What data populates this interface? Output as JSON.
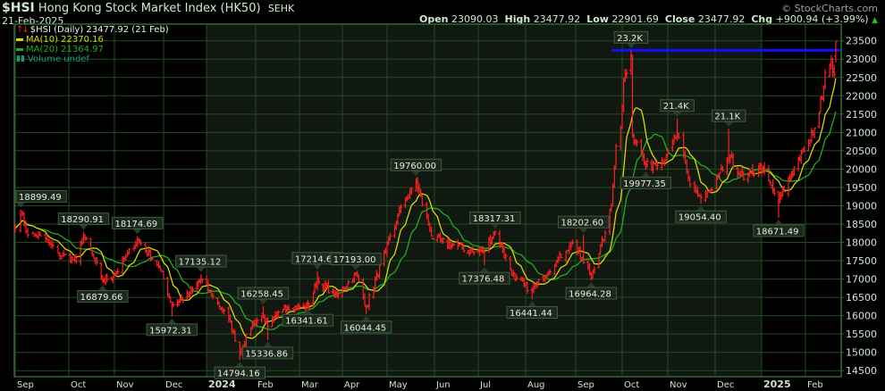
{
  "header": {
    "symbol": "$HSI",
    "name": "Hong Kong Stock Market Index (HK50)",
    "exchange": "SEHK",
    "date": "21-Feb-2025",
    "watermark": "© StockCharts.com",
    "open_label": "Open",
    "open": "23090.03",
    "high_label": "High",
    "high": "23477.92",
    "low_label": "Low",
    "low": "22901.69",
    "close_label": "Close",
    "close": "23477.92",
    "chg_label": "Chg",
    "chg": "+900.94 (+3.99%)",
    "chg_icon": "triangle-up-icon"
  },
  "legend": {
    "price": "$HSI (Daily) 23477.92 (21 Feb)",
    "ma10": "MA(10) 22370.16",
    "ma20": "MA(20) 21364.97",
    "volume": "Volume undef"
  },
  "colors": {
    "bars": "#ff2020",
    "ma10": "#d8d800",
    "ma20": "#1fae1f",
    "volume": "#1a9a7a",
    "resistance": "#1010ff",
    "grid": "#1f4d1f",
    "shade": "#111811"
  },
  "chart_data": {
    "type": "ohlc",
    "ylim": [
      14300,
      23700
    ],
    "yticks": [
      14500,
      15000,
      15500,
      16000,
      16500,
      17000,
      17500,
      18000,
      18500,
      19000,
      19500,
      20000,
      20500,
      21000,
      21500,
      22000,
      22500,
      23000,
      23500
    ],
    "xticks": [
      {
        "date": "2023-09-01",
        "label": "Sep"
      },
      {
        "date": "2023-10-01",
        "label": "Oct"
      },
      {
        "date": "2023-11-01",
        "label": "Nov"
      },
      {
        "date": "2023-12-01",
        "label": "Dec"
      },
      {
        "date": "2024-01-01",
        "label": "2024",
        "bold": true
      },
      {
        "date": "2024-02-01",
        "label": "Feb"
      },
      {
        "date": "2024-03-01",
        "label": "Mar"
      },
      {
        "date": "2024-04-01",
        "label": "Apr"
      },
      {
        "date": "2024-05-01",
        "label": "May"
      },
      {
        "date": "2024-06-01",
        "label": "Jun"
      },
      {
        "date": "2024-07-01",
        "label": "Jul"
      },
      {
        "date": "2024-08-01",
        "label": "Aug"
      },
      {
        "date": "2024-09-01",
        "label": "Sep"
      },
      {
        "date": "2024-10-01",
        "label": "Oct"
      },
      {
        "date": "2024-11-01",
        "label": "Nov"
      },
      {
        "date": "2024-12-01",
        "label": "Dec"
      },
      {
        "date": "2025-01-01",
        "label": "2025",
        "bold": true
      },
      {
        "date": "2025-02-01",
        "label": "Feb"
      }
    ],
    "closes": [
      [
        "2023-08-31",
        18380
      ],
      [
        "2023-09-04",
        18840
      ],
      [
        "2023-09-08",
        18200
      ],
      [
        "2023-09-15",
        18180
      ],
      [
        "2023-09-25",
        17700
      ],
      [
        "2023-10-06",
        17490
      ],
      [
        "2023-10-11",
        18200
      ],
      [
        "2023-10-24",
        16990
      ],
      [
        "2023-11-01",
        17100
      ],
      [
        "2023-11-08",
        17600
      ],
      [
        "2023-11-15",
        18080
      ],
      [
        "2023-11-28",
        17350
      ],
      [
        "2023-12-07",
        16300
      ],
      [
        "2023-12-20",
        16600
      ],
      [
        "2023-12-28",
        17000
      ],
      [
        "2024-01-05",
        16530
      ],
      [
        "2024-01-15",
        15900
      ],
      [
        "2024-01-22",
        15000
      ],
      [
        "2024-01-30",
        15800
      ],
      [
        "2024-02-06",
        16000
      ],
      [
        "2024-02-09",
        15700
      ],
      [
        "2024-02-20",
        16250
      ],
      [
        "2024-03-07",
        16230
      ],
      [
        "2024-03-14",
        16950
      ],
      [
        "2024-03-28",
        16540
      ],
      [
        "2024-04-10",
        17140
      ],
      [
        "2024-04-17",
        16250
      ],
      [
        "2024-04-30",
        17760
      ],
      [
        "2024-05-10",
        18960
      ],
      [
        "2024-05-20",
        19640
      ],
      [
        "2024-05-31",
        18080
      ],
      [
        "2024-06-14",
        17940
      ],
      [
        "2024-06-28",
        17720
      ],
      [
        "2024-07-05",
        17800
      ],
      [
        "2024-07-12",
        18290
      ],
      [
        "2024-07-25",
        17000
      ],
      [
        "2024-08-05",
        16700
      ],
      [
        "2024-08-20",
        17500
      ],
      [
        "2024-08-30",
        17990
      ],
      [
        "2024-09-06",
        17450
      ],
      [
        "2024-09-11",
        17100
      ],
      [
        "2024-09-20",
        18250
      ],
      [
        "2024-09-24",
        19000
      ],
      [
        "2024-09-27",
        20630
      ],
      [
        "2024-09-30",
        21130
      ],
      [
        "2024-10-02",
        22440
      ],
      [
        "2024-10-07",
        23100
      ],
      [
        "2024-10-08",
        20930
      ],
      [
        "2024-10-14",
        20450
      ],
      [
        "2024-10-17",
        20080
      ],
      [
        "2024-10-31",
        20320
      ],
      [
        "2024-11-07",
        20950
      ],
      [
        "2024-11-15",
        19580
      ],
      [
        "2024-11-22",
        19230
      ],
      [
        "2024-11-29",
        19420
      ],
      [
        "2024-12-10",
        20310
      ],
      [
        "2024-12-20",
        19720
      ],
      [
        "2024-12-31",
        20060
      ],
      [
        "2025-01-06",
        19690
      ],
      [
        "2025-01-13",
        19090
      ],
      [
        "2025-01-24",
        20060
      ],
      [
        "2025-02-04",
        20790
      ],
      [
        "2025-02-10",
        21520
      ],
      [
        "2025-02-14",
        22620
      ],
      [
        "2025-02-18",
        22980
      ],
      [
        "2025-02-20",
        22576
      ],
      [
        "2025-02-21",
        23477.92
      ]
    ],
    "last_bar": {
      "open": 23090.03,
      "high": 23477.92,
      "low": 22901.69,
      "close": 23477.92
    },
    "ma10_last": 22370.16,
    "ma20_last": 21364.97,
    "resistance_level": 23241,
    "annotations": [
      {
        "date": "2023-09-04",
        "label": "18899.49",
        "value": 18899.49,
        "side": "high"
      },
      {
        "date": "2023-10-11",
        "label": "18290.91",
        "value": 18290.91,
        "side": "high"
      },
      {
        "date": "2023-10-24",
        "label": "16879.66",
        "value": 16879.66,
        "side": "low"
      },
      {
        "date": "2023-11-15",
        "label": "18174.69",
        "value": 18174.69,
        "side": "high"
      },
      {
        "date": "2023-12-07",
        "label": "15972.31",
        "value": 15972.31,
        "side": "low"
      },
      {
        "date": "2023-12-28",
        "label": "17135.12",
        "value": 17135.12,
        "side": "high"
      },
      {
        "date": "2024-01-22",
        "label": "14794.16",
        "value": 14794.16,
        "side": "low"
      },
      {
        "date": "2024-02-06",
        "label": "16258.45",
        "value": 16258.45,
        "side": "high"
      },
      {
        "date": "2024-02-09",
        "label": "15336.86",
        "value": 15336.86,
        "side": "low"
      },
      {
        "date": "2024-03-14",
        "label": "17214.67",
        "value": 17214.67,
        "side": "high"
      },
      {
        "date": "2024-03-07",
        "label": "16341.61",
        "value": 16341.61,
        "side": "low"
      },
      {
        "date": "2024-04-10",
        "label": "17193.00",
        "value": 17193.0,
        "side": "high"
      },
      {
        "date": "2024-04-17",
        "label": "16044.45",
        "value": 16044.45,
        "side": "low"
      },
      {
        "date": "2024-05-20",
        "label": "19760.00",
        "value": 19760.0,
        "side": "high"
      },
      {
        "date": "2024-07-12",
        "label": "18317.31",
        "value": 18317.31,
        "side": "high"
      },
      {
        "date": "2024-07-05",
        "label": "17376.48",
        "value": 17376.48,
        "side": "low"
      },
      {
        "date": "2024-08-05",
        "label": "16441.44",
        "value": 16441.44,
        "side": "low"
      },
      {
        "date": "2024-09-06",
        "label": "18202.60",
        "value": 18202.6,
        "side": "high"
      },
      {
        "date": "2024-09-11",
        "label": "16964.28",
        "value": 16964.28,
        "side": "low"
      },
      {
        "date": "2024-10-07",
        "label": "23.2K",
        "value": 23241,
        "side": "high"
      },
      {
        "date": "2024-10-17",
        "label": "19977.35",
        "value": 19977.35,
        "side": "low"
      },
      {
        "date": "2024-11-07",
        "label": "21.4K",
        "value": 21380,
        "side": "high"
      },
      {
        "date": "2024-11-22",
        "label": "19054.40",
        "value": 19054.4,
        "side": "low"
      },
      {
        "date": "2024-12-10",
        "label": "21.1K",
        "value": 21100,
        "side": "high"
      },
      {
        "date": "2025-01-13",
        "label": "18671.49",
        "value": 18671.49,
        "side": "low"
      }
    ]
  }
}
